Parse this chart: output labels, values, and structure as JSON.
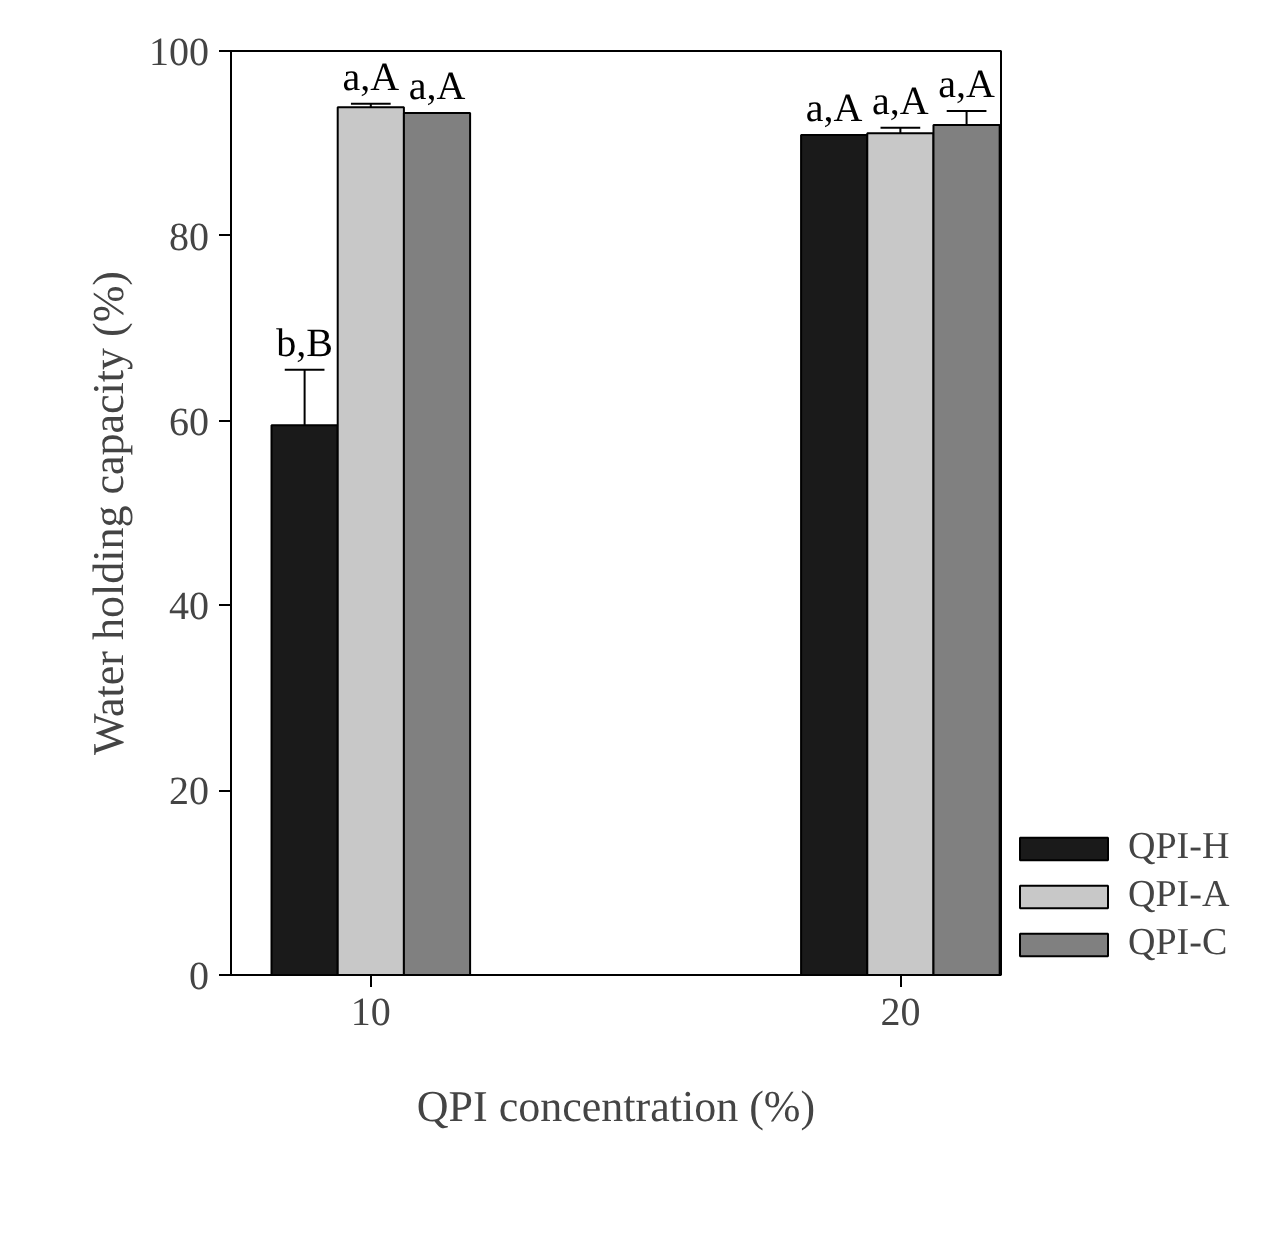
{
  "chart_data": {
    "type": "bar",
    "xlabel": "QPI concentration (%)",
    "ylabel": "Water holding capacity (%)",
    "categories": [
      "10",
      "20"
    ],
    "ylim": [
      0,
      100
    ],
    "yticks": [
      0,
      20,
      40,
      60,
      80,
      100
    ],
    "grid": false,
    "legend": "bottom right",
    "series": [
      {
        "name": "QPI-H",
        "color": "#1a1a1a",
        "values": [
          59.5,
          90.9
        ],
        "errors": [
          6,
          null
        ],
        "value_labels": [
          "b,B",
          "a,A"
        ]
      },
      {
        "name": "QPI-A",
        "color": "#c8c8c8",
        "values": [
          93.9,
          91.1
        ],
        "errors": [
          0.4,
          0.6
        ],
        "value_labels": [
          "a,A",
          "a,A"
        ]
      },
      {
        "name": "QPI-C",
        "color": "#808080",
        "values": [
          93.3,
          92.0
        ],
        "errors": [
          null,
          1.5
        ],
        "value_labels": [
          "a,A",
          "a,A"
        ]
      }
    ]
  }
}
